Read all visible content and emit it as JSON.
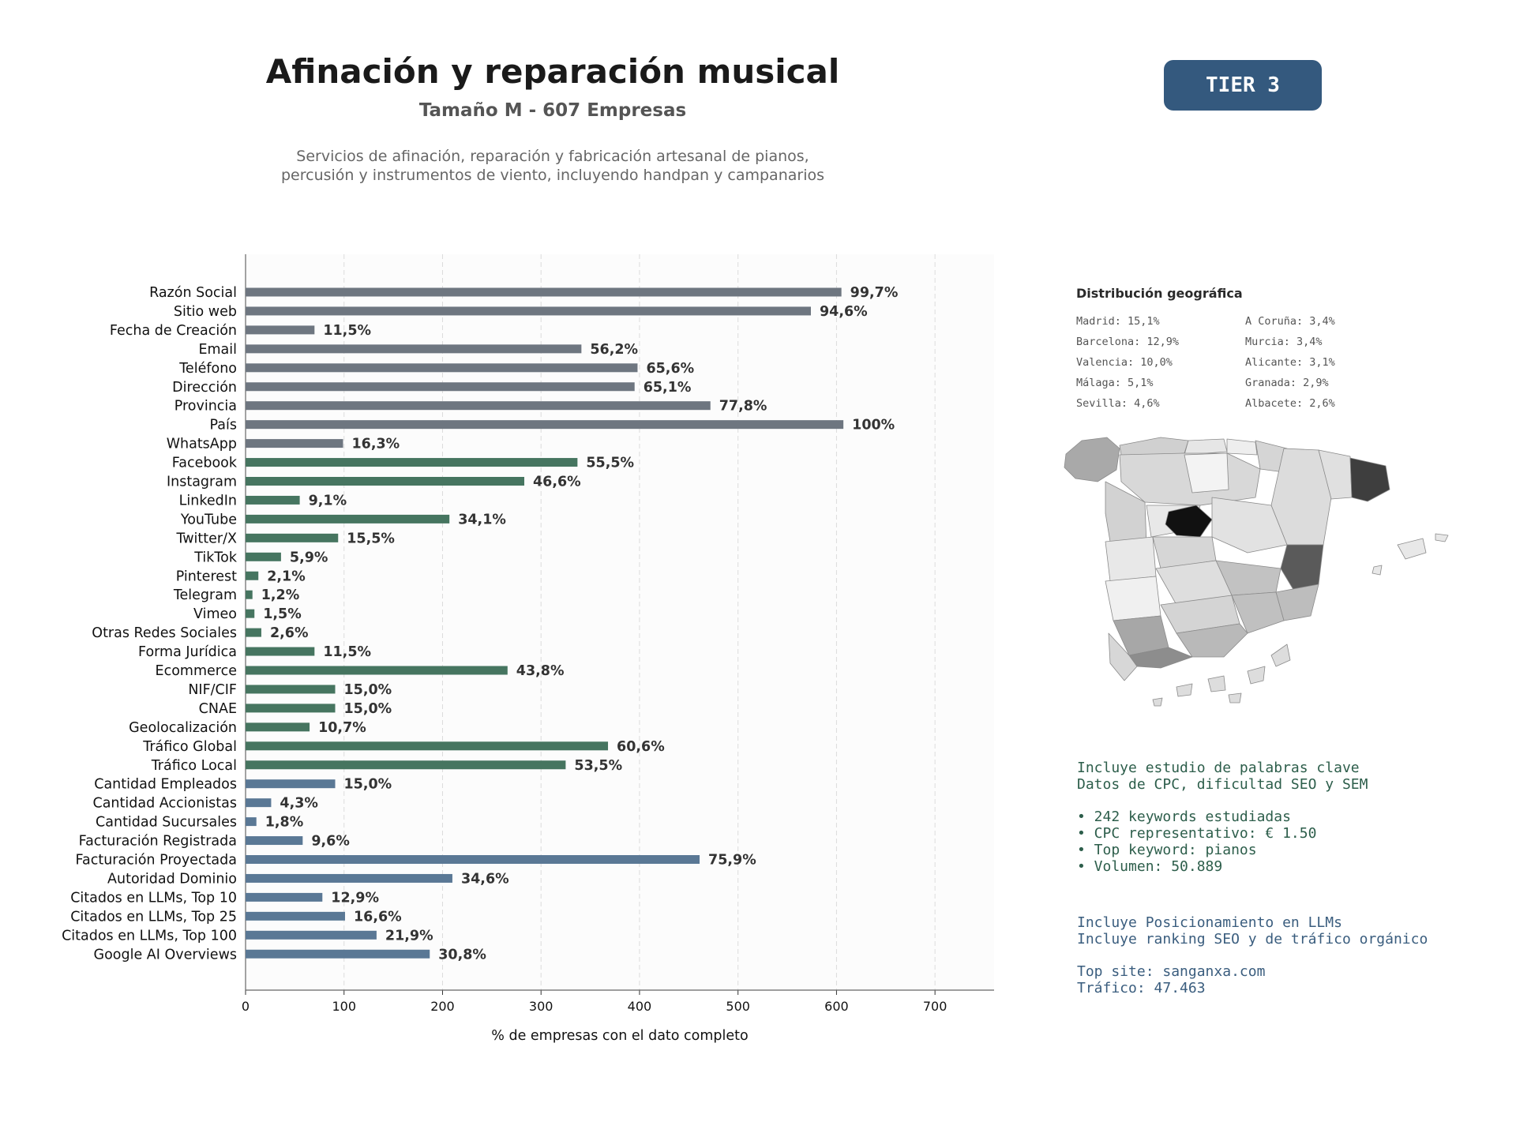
{
  "header": {
    "title": "Afinación y reparación musical",
    "subtitle": "Tamaño M - 607 Empresas",
    "description": "Servicios de afinación, reparación y fabricación artesanal de pianos,\npercusión y instrumentos de viento, incluyendo handpan y campanarios",
    "tier": "TIER 3"
  },
  "colors": {
    "basic": "#6e7680",
    "web": "#467560",
    "business": "#5a7895",
    "badge": "#34597e"
  },
  "chart_data": {
    "type": "bar",
    "orientation": "horizontal",
    "xlabel": "% de empresas con el dato completo",
    "xlim": [
      0,
      760
    ],
    "xticks": [
      0,
      100,
      200,
      300,
      400,
      500,
      600,
      700
    ],
    "grid": "vertical dashed",
    "bars": [
      {
        "label": "Razón Social",
        "value": 605,
        "pct": "99,7%",
        "group": "basic"
      },
      {
        "label": "Sitio web",
        "value": 574,
        "pct": "94,6%",
        "group": "basic"
      },
      {
        "label": "Fecha de Creación",
        "value": 70,
        "pct": "11,5%",
        "group": "basic"
      },
      {
        "label": "Email",
        "value": 341,
        "pct": "56,2%",
        "group": "basic"
      },
      {
        "label": "Teléfono",
        "value": 398,
        "pct": "65,6%",
        "group": "basic"
      },
      {
        "label": "Dirección",
        "value": 395,
        "pct": "65,1%",
        "group": "basic"
      },
      {
        "label": "Provincia",
        "value": 472,
        "pct": "77,8%",
        "group": "basic"
      },
      {
        "label": "País",
        "value": 607,
        "pct": "100%",
        "group": "basic"
      },
      {
        "label": "WhatsApp",
        "value": 99,
        "pct": "16,3%",
        "group": "basic"
      },
      {
        "label": "Facebook",
        "value": 337,
        "pct": "55,5%",
        "group": "web"
      },
      {
        "label": "Instagram",
        "value": 283,
        "pct": "46,6%",
        "group": "web"
      },
      {
        "label": "LinkedIn",
        "value": 55,
        "pct": "9,1%",
        "group": "web"
      },
      {
        "label": "YouTube",
        "value": 207,
        "pct": "34,1%",
        "group": "web"
      },
      {
        "label": "Twitter/X",
        "value": 94,
        "pct": "15,5%",
        "group": "web"
      },
      {
        "label": "TikTok",
        "value": 36,
        "pct": "5,9%",
        "group": "web"
      },
      {
        "label": "Pinterest",
        "value": 13,
        "pct": "2,1%",
        "group": "web"
      },
      {
        "label": "Telegram",
        "value": 7,
        "pct": "1,2%",
        "group": "web"
      },
      {
        "label": "Vimeo",
        "value": 9,
        "pct": "1,5%",
        "group": "web"
      },
      {
        "label": "Otras Redes Sociales",
        "value": 16,
        "pct": "2,6%",
        "group": "web"
      },
      {
        "label": "Forma Jurídica",
        "value": 70,
        "pct": "11,5%",
        "group": "web"
      },
      {
        "label": "Ecommerce",
        "value": 266,
        "pct": "43,8%",
        "group": "web"
      },
      {
        "label": "NIF/CIF",
        "value": 91,
        "pct": "15,0%",
        "group": "web"
      },
      {
        "label": "CNAE",
        "value": 91,
        "pct": "15,0%",
        "group": "web"
      },
      {
        "label": "Geolocalización",
        "value": 65,
        "pct": "10,7%",
        "group": "web"
      },
      {
        "label": "Tráfico Global",
        "value": 368,
        "pct": "60,6%",
        "group": "web"
      },
      {
        "label": "Tráfico Local",
        "value": 325,
        "pct": "53,5%",
        "group": "web"
      },
      {
        "label": "Cantidad Empleados",
        "value": 91,
        "pct": "15,0%",
        "group": "business"
      },
      {
        "label": "Cantidad Accionistas",
        "value": 26,
        "pct": "4,3%",
        "group": "business"
      },
      {
        "label": "Cantidad Sucursales",
        "value": 11,
        "pct": "1,8%",
        "group": "business"
      },
      {
        "label": "Facturación Registrada",
        "value": 58,
        "pct": "9,6%",
        "group": "business"
      },
      {
        "label": "Facturación Proyectada",
        "value": 461,
        "pct": "75,9%",
        "group": "business"
      },
      {
        "label": "Autoridad Dominio",
        "value": 210,
        "pct": "34,6%",
        "group": "business"
      },
      {
        "label": "Citados en LLMs, Top 10",
        "value": 78,
        "pct": "12,9%",
        "group": "business"
      },
      {
        "label": "Citados en LLMs, Top 25",
        "value": 101,
        "pct": "16,6%",
        "group": "business"
      },
      {
        "label": "Citados en LLMs, Top 100",
        "value": 133,
        "pct": "21,9%",
        "group": "business"
      },
      {
        "label": "Google AI Overviews",
        "value": 187,
        "pct": "30,8%",
        "group": "business"
      }
    ]
  },
  "geo": {
    "title": "Distribución geográfica",
    "items": [
      "Madrid: 15,1%",
      "A Coruña: 3,4%",
      "Barcelona: 12,9%",
      "Murcia: 3,4%",
      "Valencia: 10,0%",
      "Alicante: 3,1%",
      "Málaga: 5,1%",
      "Granada: 2,9%",
      "Sevilla: 4,6%",
      "Albacete: 2,6%"
    ]
  },
  "keywords_block": {
    "lines": [
      "Incluye estudio de palabras clave",
      "Datos de CPC, dificultad SEO y SEM",
      "",
      "• 242 keywords estudiadas",
      "• CPC representativo: € 1.50",
      "• Top keyword: pianos",
      "• Volumen: 50.889"
    ]
  },
  "llm_block": {
    "lines": [
      "Incluye Posicionamiento en LLMs",
      "Incluye ranking SEO y de tráfico orgánico",
      "",
      "Top site: sanganxa.com",
      "Tráfico: 47.463"
    ]
  }
}
